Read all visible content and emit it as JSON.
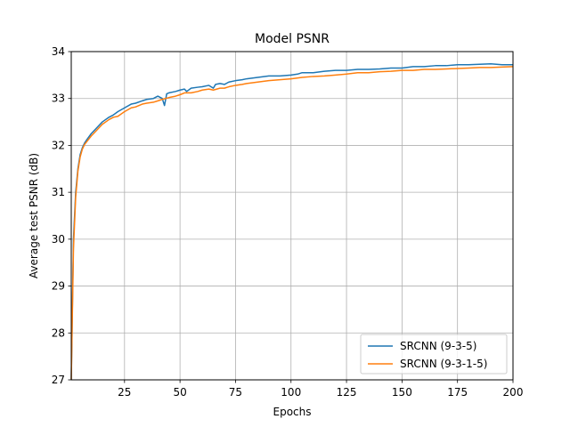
{
  "chart_data": {
    "type": "line",
    "title": "Model PSNR",
    "xlabel": "Epochs",
    "ylabel": "Average test PSNR (dB)",
    "xlim": [
      1,
      200
    ],
    "ylim": [
      27,
      34
    ],
    "xticks": [
      25,
      50,
      75,
      100,
      125,
      150,
      175,
      200
    ],
    "yticks": [
      27,
      28,
      29,
      30,
      31,
      32,
      33,
      34
    ],
    "grid": true,
    "legend_position": "lower-right",
    "series": [
      {
        "name": "SRCNN (9-3-5)",
        "color": "#1f77b4",
        "x": [
          1,
          2,
          3,
          4,
          5,
          6,
          7,
          8,
          10,
          12,
          15,
          18,
          20,
          22,
          25,
          28,
          30,
          33,
          35,
          38,
          40,
          42,
          43,
          44,
          45,
          48,
          50,
          52,
          53,
          55,
          58,
          60,
          63,
          65,
          66,
          68,
          70,
          72,
          75,
          78,
          80,
          85,
          90,
          95,
          100,
          103,
          105,
          110,
          115,
          120,
          125,
          130,
          135,
          140,
          145,
          150,
          155,
          160,
          165,
          170,
          175,
          180,
          185,
          190,
          195,
          200
        ],
        "values": [
          27.0,
          30.0,
          31.0,
          31.5,
          31.8,
          31.95,
          32.05,
          32.12,
          32.25,
          32.35,
          32.5,
          32.6,
          32.65,
          32.72,
          32.8,
          32.88,
          32.9,
          32.95,
          32.98,
          33.0,
          33.05,
          33.0,
          32.85,
          33.1,
          33.12,
          33.15,
          33.18,
          33.2,
          33.15,
          33.22,
          33.24,
          33.25,
          33.28,
          33.22,
          33.3,
          33.32,
          33.3,
          33.35,
          33.38,
          33.4,
          33.42,
          33.45,
          33.48,
          33.48,
          33.5,
          33.52,
          33.55,
          33.55,
          33.58,
          33.6,
          33.6,
          33.62,
          33.62,
          33.63,
          33.65,
          33.65,
          33.68,
          33.68,
          33.7,
          33.7,
          33.72,
          33.72,
          33.73,
          33.74,
          33.72,
          33.72
        ]
      },
      {
        "name": "SRCNN (9-3-1-5)",
        "color": "#ff7f0e",
        "x": [
          1,
          2,
          3,
          4,
          5,
          6,
          7,
          8,
          10,
          12,
          15,
          18,
          20,
          22,
          25,
          28,
          30,
          33,
          35,
          38,
          40,
          42,
          45,
          48,
          50,
          52,
          55,
          58,
          60,
          63,
          65,
          68,
          70,
          72,
          75,
          78,
          80,
          85,
          90,
          95,
          100,
          105,
          110,
          115,
          120,
          125,
          130,
          135,
          140,
          145,
          150,
          155,
          160,
          165,
          170,
          175,
          180,
          185,
          190,
          195,
          200
        ],
        "values": [
          27.0,
          29.8,
          30.9,
          31.45,
          31.75,
          31.92,
          32.02,
          32.08,
          32.2,
          32.3,
          32.45,
          32.55,
          32.6,
          32.62,
          32.72,
          32.8,
          32.82,
          32.88,
          32.9,
          32.92,
          32.95,
          32.98,
          33.02,
          33.05,
          33.08,
          33.12,
          33.12,
          33.15,
          33.18,
          33.2,
          33.18,
          33.22,
          33.22,
          33.25,
          33.28,
          33.3,
          33.32,
          33.35,
          33.38,
          33.4,
          33.42,
          33.45,
          33.47,
          33.48,
          33.5,
          33.52,
          33.55,
          33.55,
          33.57,
          33.58,
          33.6,
          33.6,
          33.62,
          33.62,
          33.63,
          33.64,
          33.65,
          33.66,
          33.66,
          33.67,
          33.68
        ]
      }
    ]
  }
}
